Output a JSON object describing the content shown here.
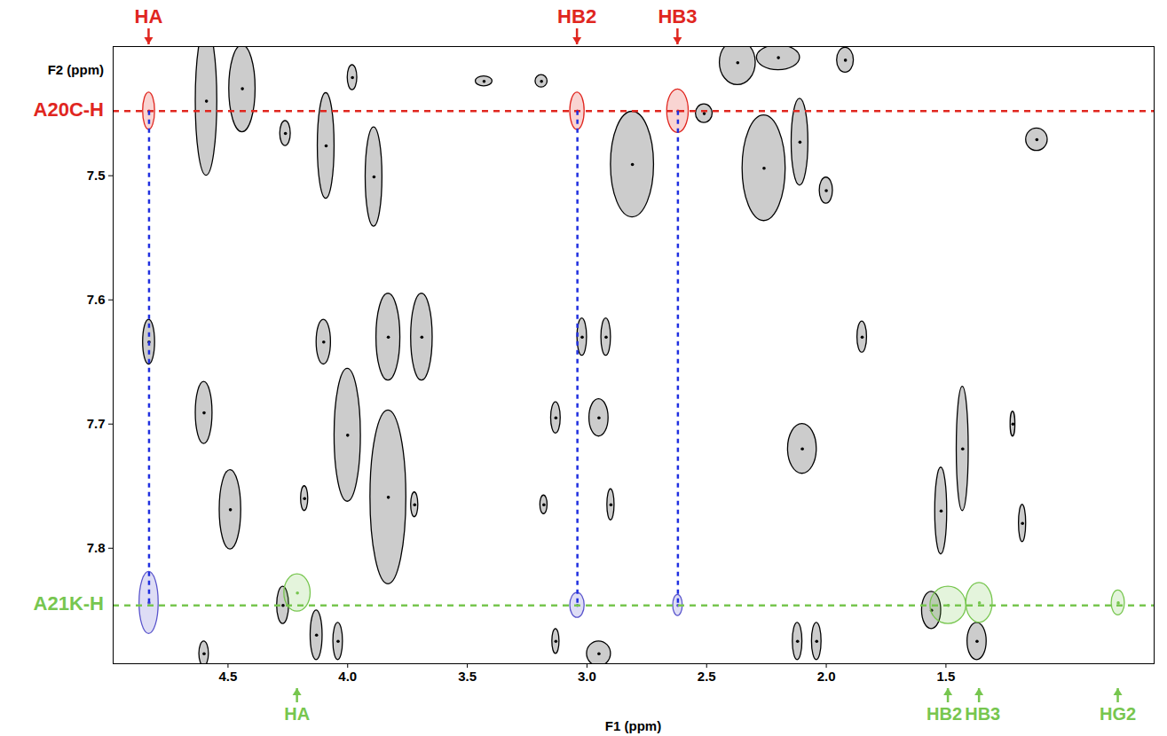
{
  "chart_data": {
    "type": "scatter",
    "x_label": "F1 (ppm)",
    "y_label": "F2 (ppm)",
    "xlim": [
      4.98,
      0.63
    ],
    "ylim": [
      7.396,
      7.893
    ],
    "xticks": [
      4.5,
      {
        "value": 4,
        "label": "4.0"
      },
      3.5,
      {
        "value": 3,
        "label": "3.0"
      },
      2.5,
      {
        "value": 2,
        "label": "2.0"
      },
      1.5
    ],
    "yticks": [
      7.5,
      7.6,
      7.7,
      7.8
    ],
    "grid": false,
    "series": [
      {
        "color": "#000000",
        "peaks": [
          {
            "x": 4.83,
            "y": 7.634,
            "w": 0.05,
            "h": 0.036
          },
          {
            "x": 4.59,
            "y": 7.44,
            "w": 0.09,
            "h": 0.12
          },
          {
            "x": 4.44,
            "y": 7.43,
            "w": 0.11,
            "h": 0.07
          },
          {
            "x": 4.26,
            "y": 7.466,
            "w": 0.044,
            "h": 0.02
          },
          {
            "x": 4.09,
            "y": 7.476,
            "w": 0.07,
            "h": 0.085
          },
          {
            "x": 4.1,
            "y": 7.634,
            "w": 0.06,
            "h": 0.036
          },
          {
            "x": 3.98,
            "y": 7.421,
            "w": 0.04,
            "h": 0.02
          },
          {
            "x": 3.89,
            "y": 7.501,
            "w": 0.07,
            "h": 0.08
          },
          {
            "x": 4.6,
            "y": 7.691,
            "w": 0.07,
            "h": 0.05
          },
          {
            "x": 4.49,
            "y": 7.769,
            "w": 0.09,
            "h": 0.064
          },
          {
            "x": 4.0,
            "y": 7.709,
            "w": 0.11,
            "h": 0.107
          },
          {
            "x": 3.83,
            "y": 7.759,
            "w": 0.15,
            "h": 0.14
          },
          {
            "x": 3.83,
            "y": 7.63,
            "w": 0.1,
            "h": 0.07
          },
          {
            "x": 3.69,
            "y": 7.63,
            "w": 0.09,
            "h": 0.07
          },
          {
            "x": 3.43,
            "y": 7.424,
            "w": 0.07,
            "h": 0.008
          },
          {
            "x": 3.19,
            "y": 7.424,
            "w": 0.05,
            "h": 0.01
          },
          {
            "x": 2.81,
            "y": 7.491,
            "w": 0.18,
            "h": 0.085
          },
          {
            "x": 2.51,
            "y": 7.45,
            "w": 0.07,
            "h": 0.015
          },
          {
            "x": 2.26,
            "y": 7.494,
            "w": 0.18,
            "h": 0.085
          },
          {
            "x": 2.11,
            "y": 7.473,
            "w": 0.07,
            "h": 0.07
          },
          {
            "x": 2.37,
            "y": 7.409,
            "w": 0.15,
            "h": 0.036
          },
          {
            "x": 2.2,
            "y": 7.405,
            "w": 0.18,
            "h": 0.02
          },
          {
            "x": 1.92,
            "y": 7.407,
            "w": 0.07,
            "h": 0.02
          },
          {
            "x": 2.0,
            "y": 7.512,
            "w": 0.055,
            "h": 0.021
          },
          {
            "x": 1.12,
            "y": 7.471,
            "w": 0.09,
            "h": 0.018
          },
          {
            "x": 3.02,
            "y": 7.63,
            "w": 0.04,
            "h": 0.03
          },
          {
            "x": 2.92,
            "y": 7.63,
            "w": 0.04,
            "h": 0.03
          },
          {
            "x": 1.85,
            "y": 7.63,
            "w": 0.04,
            "h": 0.025
          },
          {
            "x": 3.13,
            "y": 7.695,
            "w": 0.04,
            "h": 0.025
          },
          {
            "x": 2.95,
            "y": 7.695,
            "w": 0.08,
            "h": 0.03
          },
          {
            "x": 2.1,
            "y": 7.72,
            "w": 0.12,
            "h": 0.04
          },
          {
            "x": 1.43,
            "y": 7.72,
            "w": 0.05,
            "h": 0.1
          },
          {
            "x": 1.52,
            "y": 7.77,
            "w": 0.05,
            "h": 0.07
          },
          {
            "x": 1.22,
            "y": 7.7,
            "w": 0.02,
            "h": 0.02
          },
          {
            "x": 1.18,
            "y": 7.78,
            "w": 0.03,
            "h": 0.03
          },
          {
            "x": 4.18,
            "y": 7.76,
            "w": 0.03,
            "h": 0.02
          },
          {
            "x": 3.72,
            "y": 7.765,
            "w": 0.03,
            "h": 0.02
          },
          {
            "x": 3.18,
            "y": 7.765,
            "w": 0.03,
            "h": 0.015
          },
          {
            "x": 2.9,
            "y": 7.765,
            "w": 0.03,
            "h": 0.025
          },
          {
            "x": 4.27,
            "y": 7.846,
            "w": 0.05,
            "h": 0.03
          },
          {
            "x": 1.56,
            "y": 7.85,
            "w": 0.08,
            "h": 0.03
          },
          {
            "x": 1.37,
            "y": 7.875,
            "w": 0.08,
            "h": 0.03
          },
          {
            "x": 4.6,
            "y": 7.885,
            "w": 0.04,
            "h": 0.02
          },
          {
            "x": 4.13,
            "y": 7.87,
            "w": 0.05,
            "h": 0.04
          },
          {
            "x": 4.04,
            "y": 7.875,
            "w": 0.04,
            "h": 0.03
          },
          {
            "x": 3.13,
            "y": 7.875,
            "w": 0.03,
            "h": 0.02
          },
          {
            "x": 2.95,
            "y": 7.885,
            "w": 0.1,
            "h": 0.02
          },
          {
            "x": 2.12,
            "y": 7.875,
            "w": 0.04,
            "h": 0.03
          },
          {
            "x": 2.04,
            "y": 7.875,
            "w": 0.04,
            "h": 0.03
          }
        ]
      },
      {
        "color": "#5a55cc",
        "peaks": [
          {
            "x": 4.83,
            "y": 7.844,
            "w": 0.08,
            "h": 0.05
          },
          {
            "x": 3.04,
            "y": 7.846,
            "w": 0.06,
            "h": 0.02
          },
          {
            "x": 2.62,
            "y": 7.846,
            "w": 0.04,
            "h": 0.017
          }
        ]
      },
      {
        "name": "A20C-H",
        "color": "#e0261f",
        "y": 7.448,
        "labels": [
          {
            "text": "HA",
            "x": 4.83
          },
          {
            "text": "HB2",
            "x": 3.04
          },
          {
            "text": "HB3",
            "x": 2.62
          }
        ],
        "peaks": [
          {
            "x": 4.83,
            "y": 7.448,
            "w": 0.05,
            "h": 0.03
          },
          {
            "x": 3.04,
            "y": 7.448,
            "w": 0.06,
            "h": 0.03
          },
          {
            "x": 2.62,
            "y": 7.448,
            "w": 0.09,
            "h": 0.035
          }
        ]
      },
      {
        "name": "A21K-H",
        "color": "#77c64f",
        "y": 7.846,
        "labels": [
          {
            "text": "HA",
            "x": 4.21
          },
          {
            "text": "HB2",
            "x": 1.49
          },
          {
            "text": "HB3",
            "x": 1.36
          },
          {
            "text": "HG2",
            "x": 0.78
          }
        ],
        "peaks": [
          {
            "x": 4.21,
            "y": 7.836,
            "w": 0.11,
            "h": 0.03
          },
          {
            "x": 1.49,
            "y": 7.846,
            "w": 0.15,
            "h": 0.03
          },
          {
            "x": 1.36,
            "y": 7.844,
            "w": 0.11,
            "h": 0.032
          },
          {
            "x": 0.78,
            "y": 7.844,
            "w": 0.055,
            "h": 0.02
          }
        ]
      }
    ]
  }
}
